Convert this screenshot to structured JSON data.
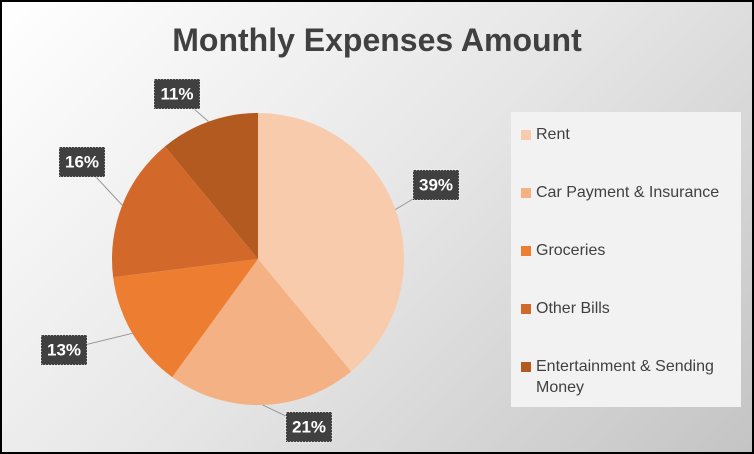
{
  "chart_data": {
    "type": "pie",
    "title": "Monthly Expenses Amount",
    "categories": [
      "Rent",
      "Car Payment & Insurance",
      "Groceries",
      "Other Bills",
      "Entertainment & Sending Money"
    ],
    "values": [
      39,
      21,
      13,
      16,
      11
    ],
    "value_labels": [
      "39%",
      "21%",
      "13%",
      "16%",
      "11%"
    ],
    "colors": [
      "#f8cbad",
      "#f4b183",
      "#ed7d31",
      "#d2692a",
      "#b35a20"
    ],
    "legend": "right"
  }
}
